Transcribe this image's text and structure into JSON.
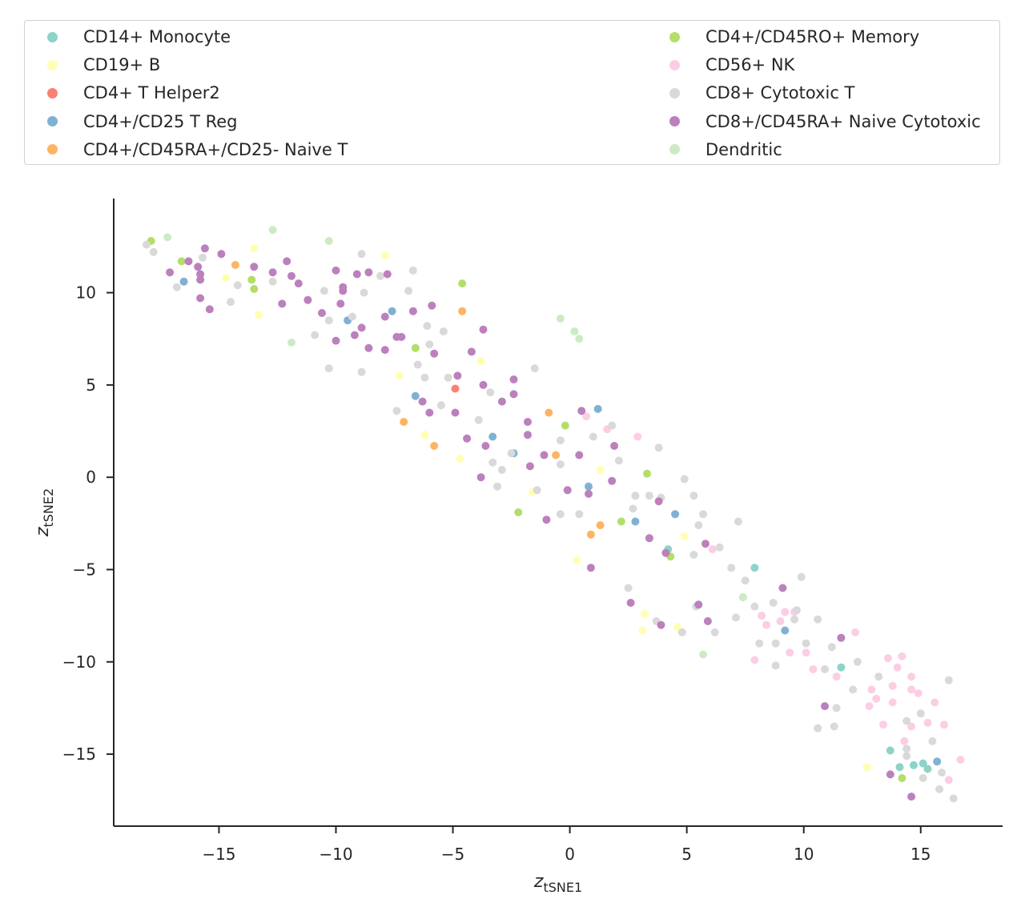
{
  "chart_data": {
    "type": "scatter",
    "xlabel": "z",
    "xlabel_sub": "tSNE1",
    "ylabel": "z",
    "ylabel_sub": "tSNE2",
    "xlim": [
      -19.5,
      18.5
    ],
    "ylim": [
      -18.9,
      15.1
    ],
    "xticks": [
      -15,
      -10,
      -5,
      0,
      5,
      10,
      15
    ],
    "yticks": [
      -15,
      -10,
      -5,
      0,
      5,
      10
    ],
    "xtick_labels": [
      "−15",
      "−10",
      "−5",
      "0",
      "5",
      "10",
      "15"
    ],
    "ytick_labels": [
      "−15",
      "−10",
      "−5",
      "0",
      "5",
      "10"
    ],
    "legend_placement": "top, outside plot",
    "series": [
      {
        "name": "CD14+ Monocyte",
        "color": "#8dd3c7",
        "points": [
          [
            4.2,
            -3.9
          ],
          [
            7.9,
            -4.9
          ],
          [
            11.6,
            -10.3
          ],
          [
            13.7,
            -14.8
          ],
          [
            14.1,
            -15.7
          ],
          [
            14.7,
            -15.6
          ],
          [
            15.1,
            -15.5
          ],
          [
            15.3,
            -15.8
          ]
        ]
      },
      {
        "name": "CD19+ B",
        "color": "#ffffb3",
        "points": [
          [
            -13.5,
            12.4
          ],
          [
            -14.7,
            10.8
          ],
          [
            -13.3,
            8.8
          ],
          [
            -7.9,
            12
          ],
          [
            -7.3,
            5.5
          ],
          [
            -6.2,
            2.3
          ],
          [
            -4.7,
            1
          ],
          [
            -3.8,
            6.3
          ],
          [
            -1.6,
            -0.8
          ],
          [
            0.3,
            -4.5
          ],
          [
            1.3,
            0.4
          ],
          [
            3.1,
            -8.3
          ],
          [
            3.2,
            -7.4
          ],
          [
            4.6,
            -8.1
          ],
          [
            4.9,
            -3.2
          ],
          [
            12.7,
            -15.7
          ]
        ]
      },
      {
        "name": "CD4+ T Helper2",
        "color": "#fb8072",
        "points": [
          [
            -4.9,
            4.8
          ]
        ]
      },
      {
        "name": "CD4+/CD25 T Reg",
        "color": "#80b1d3",
        "points": [
          [
            -16.5,
            10.6
          ],
          [
            -9.5,
            8.5
          ],
          [
            -7.6,
            9
          ],
          [
            -6.6,
            4.4
          ],
          [
            -3.3,
            2.2
          ],
          [
            -2.4,
            1.3
          ],
          [
            0.8,
            -0.5
          ],
          [
            1.2,
            3.7
          ],
          [
            2.8,
            -2.4
          ],
          [
            4.5,
            -2
          ],
          [
            9.2,
            -8.3
          ],
          [
            15.7,
            -15.4
          ]
        ]
      },
      {
        "name": "CD4+/CD45RA+/CD25- Naive T",
        "color": "#fdb462",
        "points": [
          [
            -14.3,
            11.5
          ],
          [
            -4.6,
            9
          ],
          [
            -7.1,
            3
          ],
          [
            -5.8,
            1.7
          ],
          [
            -0.9,
            3.5
          ],
          [
            -0.6,
            1.2
          ],
          [
            0.9,
            -3.1
          ],
          [
            1.3,
            -2.6
          ]
        ]
      },
      {
        "name": "CD4+/CD45RO+ Memory",
        "color": "#b3de69",
        "points": [
          [
            -17.9,
            12.8
          ],
          [
            -16.6,
            11.7
          ],
          [
            -13.6,
            10.7
          ],
          [
            -13.5,
            10.2
          ],
          [
            -6.6,
            7
          ],
          [
            -4.6,
            10.5
          ],
          [
            -2.2,
            -1.9
          ],
          [
            -0.2,
            2.8
          ],
          [
            2.2,
            -2.4
          ],
          [
            3.3,
            0.2
          ],
          [
            4.3,
            -4.3
          ],
          [
            7.4,
            -6.5
          ],
          [
            14.2,
            -16.3
          ]
        ]
      },
      {
        "name": "CD56+ NK",
        "color": "#fccde5",
        "points": [
          [
            0.7,
            3.3
          ],
          [
            1.6,
            2.6
          ],
          [
            2.9,
            2.2
          ],
          [
            6.1,
            -3.9
          ],
          [
            7.9,
            -9.9
          ],
          [
            8.2,
            -7.5
          ],
          [
            8.4,
            -8
          ],
          [
            9,
            -7.8
          ],
          [
            9.2,
            -7.3
          ],
          [
            9.4,
            -9.5
          ],
          [
            9.6,
            -7.3
          ],
          [
            10.1,
            -9.5
          ],
          [
            10.4,
            -10.4
          ],
          [
            11.4,
            -10.8
          ],
          [
            12.2,
            -8.4
          ],
          [
            12.9,
            -11.5
          ],
          [
            12.8,
            -12.4
          ],
          [
            13.1,
            -12
          ],
          [
            13.4,
            -13.4
          ],
          [
            13.6,
            -9.8
          ],
          [
            13.8,
            -11.3
          ],
          [
            13.8,
            -12.2
          ],
          [
            14,
            -10.3
          ],
          [
            14.2,
            -9.7
          ],
          [
            14.3,
            -14.3
          ],
          [
            14.6,
            -10.8
          ],
          [
            14.6,
            -11.5
          ],
          [
            14.6,
            -13.5
          ],
          [
            14.9,
            -11.7
          ],
          [
            15.3,
            -13.3
          ],
          [
            15.6,
            -12.2
          ],
          [
            16,
            -13.4
          ],
          [
            16.2,
            -16.4
          ],
          [
            16.7,
            -15.3
          ]
        ]
      },
      {
        "name": "CD8+ Cytotoxic T",
        "color": "#d9d9d9",
        "points": [
          [
            -18.1,
            12.6
          ],
          [
            -17.8,
            12.2
          ],
          [
            -16.8,
            10.3
          ],
          [
            -15.7,
            11.9
          ],
          [
            -14.2,
            10.4
          ],
          [
            -14.5,
            9.5
          ],
          [
            -12.7,
            10.6
          ],
          [
            -10.9,
            7.7
          ],
          [
            -10.5,
            10.1
          ],
          [
            -10.3,
            8.5
          ],
          [
            -10.3,
            5.9
          ],
          [
            -9.3,
            8.7
          ],
          [
            -8.9,
            12.1
          ],
          [
            -8.8,
            10
          ],
          [
            -8.9,
            5.7
          ],
          [
            -8.1,
            10.9
          ],
          [
            -7.4,
            3.6
          ],
          [
            -6.9,
            10.1
          ],
          [
            -6.7,
            11.2
          ],
          [
            -6.5,
            6.1
          ],
          [
            -6.2,
            5.4
          ],
          [
            -6.1,
            8.2
          ],
          [
            -6,
            7.2
          ],
          [
            -5.5,
            3.9
          ],
          [
            -5.4,
            7.9
          ],
          [
            -5.2,
            5.4
          ],
          [
            -3.9,
            3.1
          ],
          [
            -3.4,
            4.6
          ],
          [
            -3.3,
            0.8
          ],
          [
            -3.1,
            -0.5
          ],
          [
            -2.9,
            0.4
          ],
          [
            -2.5,
            1.3
          ],
          [
            -1.5,
            5.9
          ],
          [
            -1.4,
            -0.7
          ],
          [
            -0.4,
            2
          ],
          [
            -0.4,
            0.7
          ],
          [
            -0.4,
            -2
          ],
          [
            0.4,
            -2
          ],
          [
            1,
            2.2
          ],
          [
            1.8,
            2.8
          ],
          [
            2.1,
            0.9
          ],
          [
            2.5,
            -6
          ],
          [
            2.7,
            -1.7
          ],
          [
            2.8,
            -1
          ],
          [
            3.4,
            -1
          ],
          [
            3.7,
            -7.8
          ],
          [
            3.8,
            1.6
          ],
          [
            3.9,
            -1.1
          ],
          [
            4.8,
            -8.4
          ],
          [
            4.9,
            -0.1
          ],
          [
            5.3,
            -1
          ],
          [
            5.3,
            -4.2
          ],
          [
            5.4,
            -7
          ],
          [
            5.5,
            -2.6
          ],
          [
            5.7,
            -2
          ],
          [
            6.2,
            -8.4
          ],
          [
            6.4,
            -3.8
          ],
          [
            6.9,
            -4.9
          ],
          [
            7.1,
            -7.6
          ],
          [
            7.2,
            -2.4
          ],
          [
            7.5,
            -5.6
          ],
          [
            7.9,
            -7
          ],
          [
            8.1,
            -9
          ],
          [
            8.7,
            -6.8
          ],
          [
            8.8,
            -9
          ],
          [
            8.8,
            -10.2
          ],
          [
            9.6,
            -7.7
          ],
          [
            9.7,
            -7.2
          ],
          [
            9.9,
            -5.4
          ],
          [
            10.1,
            -9
          ],
          [
            10.6,
            -13.6
          ],
          [
            10.6,
            -7.7
          ],
          [
            10.9,
            -10.4
          ],
          [
            11.2,
            -9.2
          ],
          [
            11.3,
            -13.5
          ],
          [
            11.4,
            -12.5
          ],
          [
            12.1,
            -11.5
          ],
          [
            12.3,
            -10
          ],
          [
            13.2,
            -10.8
          ],
          [
            14.4,
            -13.2
          ],
          [
            14.4,
            -14.7
          ],
          [
            14.4,
            -15.1
          ],
          [
            15,
            -12.8
          ],
          [
            15.1,
            -16.3
          ],
          [
            15.5,
            -14.3
          ],
          [
            15.8,
            -16.9
          ],
          [
            15.9,
            -16
          ],
          [
            16.2,
            -11
          ],
          [
            16.4,
            -17.4
          ]
        ]
      },
      {
        "name": "CD8+/CD45RA+ Naive Cytotoxic",
        "color": "#bc80bd",
        "points": [
          [
            -17.1,
            11.1
          ],
          [
            -16.3,
            11.7
          ],
          [
            -15.9,
            11.4
          ],
          [
            -15.8,
            11
          ],
          [
            -15.8,
            10.7
          ],
          [
            -15.8,
            9.7
          ],
          [
            -15.6,
            12.4
          ],
          [
            -15.4,
            9.1
          ],
          [
            -14.9,
            12.1
          ],
          [
            -13.5,
            11.4
          ],
          [
            -12.7,
            11.1
          ],
          [
            -12.3,
            9.4
          ],
          [
            -12.1,
            11.7
          ],
          [
            -11.9,
            10.9
          ],
          [
            -11.6,
            10.5
          ],
          [
            -11.2,
            9.6
          ],
          [
            -10.6,
            8.9
          ],
          [
            -10,
            11.2
          ],
          [
            -10,
            7.4
          ],
          [
            -9.8,
            9.4
          ],
          [
            -9.7,
            10.1
          ],
          [
            -9.7,
            10.3
          ],
          [
            -9.2,
            7.7
          ],
          [
            -9.1,
            11
          ],
          [
            -8.9,
            8.1
          ],
          [
            -8.6,
            11.1
          ],
          [
            -8.6,
            7
          ],
          [
            -7.9,
            6.9
          ],
          [
            -7.9,
            8.7
          ],
          [
            -7.8,
            11
          ],
          [
            -7.4,
            7.6
          ],
          [
            -7.2,
            7.6
          ],
          [
            -6.7,
            9
          ],
          [
            -6.3,
            4.1
          ],
          [
            -6,
            3.5
          ],
          [
            -5.9,
            9.3
          ],
          [
            -5.8,
            6.7
          ],
          [
            -4.9,
            3.5
          ],
          [
            -4.8,
            5.5
          ],
          [
            -4.4,
            2.1
          ],
          [
            -4.2,
            6.8
          ],
          [
            -3.8,
            0
          ],
          [
            -3.7,
            8
          ],
          [
            -3.7,
            5
          ],
          [
            -3.6,
            1.7
          ],
          [
            -2.9,
            4.1
          ],
          [
            -2.4,
            5.3
          ],
          [
            -2.4,
            4.5
          ],
          [
            -1.8,
            3
          ],
          [
            -1.8,
            2.3
          ],
          [
            -1.7,
            0.6
          ],
          [
            -1.1,
            1.2
          ],
          [
            -1,
            -2.3
          ],
          [
            -0.1,
            -0.7
          ],
          [
            0.4,
            1.2
          ],
          [
            0.5,
            3.6
          ],
          [
            0.8,
            -0.9
          ],
          [
            0.9,
            -4.9
          ],
          [
            1.9,
            1.7
          ],
          [
            1.8,
            -0.2
          ],
          [
            2.6,
            -6.8
          ],
          [
            3.4,
            -3.3
          ],
          [
            3.8,
            -1.3
          ],
          [
            3.9,
            -8
          ],
          [
            4.1,
            -4.1
          ],
          [
            5.5,
            -6.9
          ],
          [
            5.8,
            -3.6
          ],
          [
            5.9,
            -7.8
          ],
          [
            9.1,
            -6
          ],
          [
            10.9,
            -12.4
          ],
          [
            11.6,
            -8.7
          ],
          [
            13.7,
            -16.1
          ],
          [
            14.6,
            -17.3
          ]
        ]
      },
      {
        "name": "Dendritic",
        "color": "#ccebc5",
        "points": [
          [
            -17.2,
            13
          ],
          [
            -12.7,
            13.4
          ],
          [
            -10.3,
            12.8
          ],
          [
            -11.9,
            7.3
          ],
          [
            -0.4,
            8.6
          ],
          [
            0.2,
            7.9
          ],
          [
            0.4,
            7.5
          ],
          [
            7.4,
            -6.5
          ],
          [
            5.7,
            -9.6
          ]
        ]
      }
    ]
  }
}
